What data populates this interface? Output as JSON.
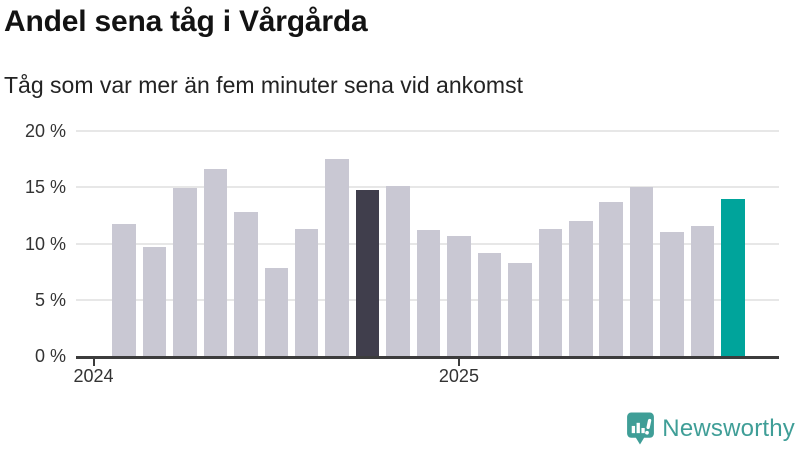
{
  "chart_data": {
    "type": "bar",
    "title": "Andel sena tåg i Vårgårda",
    "subtitle": "Tåg som var mer än fem minuter sena vid ankomst",
    "unit": "%",
    "categories": [
      "2024-02",
      "2024-03",
      "2024-04",
      "2024-05",
      "2024-06",
      "2024-07",
      "2024-08",
      "2024-09",
      "2024-10",
      "2024-11",
      "2024-12",
      "2025-01",
      "2025-02",
      "2025-03",
      "2025-04",
      "2025-05",
      "2025-06",
      "2025-07",
      "2025-08",
      "2025-09",
      "2025-10"
    ],
    "values": [
      11.7,
      9.7,
      14.9,
      16.6,
      12.8,
      7.8,
      11.3,
      17.5,
      14.8,
      15.1,
      11.2,
      10.7,
      9.2,
      8.3,
      11.3,
      12.0,
      13.7,
      15.0,
      11.0,
      11.6,
      14.0
    ],
    "ylim": [
      0,
      20
    ],
    "grid": true,
    "y_ticks": [
      {
        "value": 0,
        "label": "0 %"
      },
      {
        "value": 5,
        "label": "5 %"
      },
      {
        "value": 10,
        "label": "10 %"
      },
      {
        "value": 15,
        "label": "15 %"
      },
      {
        "value": 20,
        "label": "20 %"
      }
    ],
    "x_ticks": [
      {
        "label": "2024",
        "bar_index": -1
      },
      {
        "label": "2025",
        "bar_index": 11
      }
    ],
    "highlights": {
      "previous_year_index": 8,
      "latest_index": 20
    },
    "colors": {
      "default": "#c9c8d3",
      "previous_year": "#403e4c",
      "latest": "#00a49b"
    }
  },
  "footer": {
    "brand": "Newsworthy",
    "brand_color": "#3f9e97"
  }
}
